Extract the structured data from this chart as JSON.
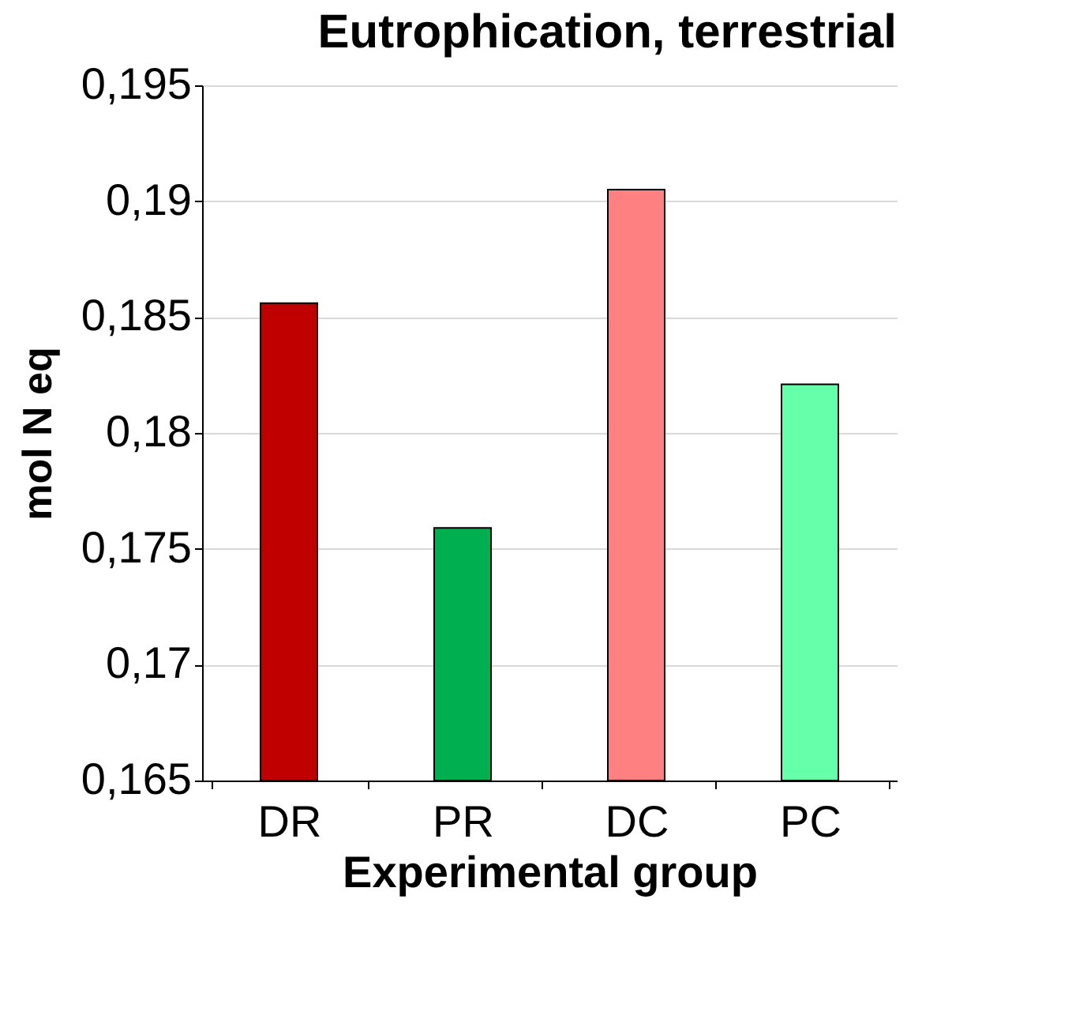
{
  "chart_data": {
    "type": "bar",
    "title": "Eutrophication, terrestrial",
    "xlabel": "Experimental group",
    "ylabel": "mol N eq",
    "categories": [
      "DR",
      "PR",
      "DC",
      "PC"
    ],
    "values": [
      0.1856,
      0.1759,
      0.1905,
      0.1821
    ],
    "colors": [
      "#c00000",
      "#00b050",
      "#ff8080",
      "#66ffaa"
    ],
    "ylim": [
      0.165,
      0.195
    ],
    "yticks": [
      {
        "value": 0.165,
        "label": "0,165"
      },
      {
        "value": 0.17,
        "label": "0,17"
      },
      {
        "value": 0.175,
        "label": "0,175"
      },
      {
        "value": 0.18,
        "label": "0,18"
      },
      {
        "value": 0.185,
        "label": "0,185"
      },
      {
        "value": 0.19,
        "label": "0,19"
      },
      {
        "value": 0.195,
        "label": "0,195"
      }
    ],
    "grid": "y"
  }
}
